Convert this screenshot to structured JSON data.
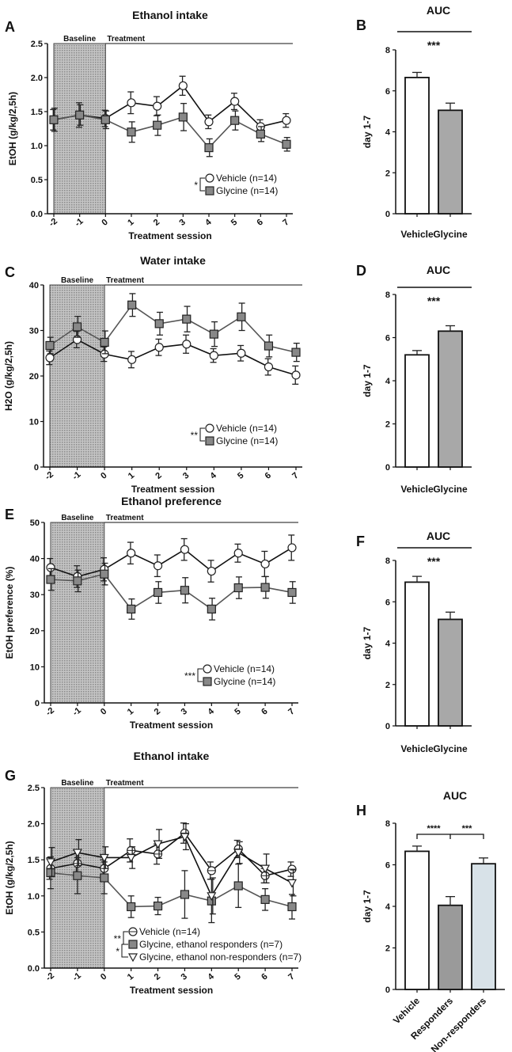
{
  "panels": [
    {
      "letter": "A",
      "type": "line",
      "title": "Ethanol intake",
      "ylabel": "EtOH (g/kg/2,5h)",
      "xlabel": "Treatment session",
      "ylim": [
        0,
        2.5
      ],
      "yticks": [
        "0.0",
        "0.5",
        "1.0",
        "1.5",
        "2.0",
        "2.5"
      ],
      "categories": [
        "-2",
        "-1",
        "0",
        "1",
        "2",
        "3",
        "4",
        "5",
        "6",
        "7"
      ],
      "baseline_label": "Baseline",
      "treatment_label": "Treatment",
      "significance": [
        "*"
      ],
      "series": [
        {
          "name": "Vehicle (n=14)",
          "marker": "circle",
          "color": "#ffffff",
          "values": [
            1.38,
            1.45,
            1.4,
            1.63,
            1.58,
            1.88,
            1.35,
            1.65,
            1.28,
            1.37
          ],
          "errors": [
            0.15,
            0.18,
            0.12,
            0.16,
            0.14,
            0.14,
            0.1,
            0.12,
            0.1,
            0.1
          ]
        },
        {
          "name": "Glycine (n=14)",
          "marker": "square",
          "color": "#888888",
          "values": [
            1.38,
            1.45,
            1.38,
            1.2,
            1.3,
            1.42,
            0.97,
            1.37,
            1.17,
            1.02
          ],
          "errors": [
            0.17,
            0.15,
            0.13,
            0.15,
            0.15,
            0.2,
            0.13,
            0.14,
            0.11,
            0.1
          ]
        }
      ]
    },
    {
      "letter": "B",
      "type": "bar",
      "title": "AUC",
      "ylabel": "day 1-7",
      "ylim": [
        0,
        8
      ],
      "yticks": [
        "0",
        "2",
        "4",
        "6",
        "8"
      ],
      "categories": [
        "Vehicle",
        "Glycine"
      ],
      "values": [
        6.65,
        5.05
      ],
      "errors": [
        0.25,
        0.35
      ],
      "colors": [
        "#ffffff",
        "#a8a8a8"
      ],
      "significance": "***"
    },
    {
      "letter": "C",
      "type": "line",
      "title": "Water intake",
      "ylabel": "H2O (g/kg/2,5h)",
      "xlabel": "Treatment session",
      "ylim": [
        0,
        40
      ],
      "yticks": [
        "0",
        "10",
        "20",
        "30",
        "40"
      ],
      "categories": [
        "-2",
        "-1",
        "0",
        "1",
        "2",
        "3",
        "4",
        "5",
        "6",
        "7"
      ],
      "baseline_label": "Baseline",
      "treatment_label": "Treatment",
      "significance": [
        "**"
      ],
      "series": [
        {
          "name": "Vehicle (n=14)",
          "marker": "circle",
          "color": "#ffffff",
          "values": [
            24.0,
            28.0,
            24.8,
            23.6,
            26.3,
            27.0,
            24.5,
            25.0,
            22.0,
            20.2
          ],
          "errors": [
            1.5,
            1.8,
            1.6,
            1.8,
            1.8,
            2.0,
            1.5,
            1.7,
            1.8,
            2.0
          ]
        },
        {
          "name": "Glycine (n=14)",
          "marker": "square",
          "color": "#888888",
          "values": [
            26.7,
            30.8,
            27.4,
            35.6,
            31.5,
            32.5,
            29.2,
            33.0,
            26.6,
            25.2
          ],
          "errors": [
            1.8,
            2.3,
            2.5,
            2.5,
            2.5,
            2.8,
            2.7,
            3.0,
            2.4,
            2.0
          ]
        }
      ]
    },
    {
      "letter": "D",
      "type": "bar",
      "title": "AUC",
      "ylabel": "day 1-7",
      "ylim": [
        0,
        8
      ],
      "yticks": [
        "0",
        "2",
        "4",
        "6",
        "8"
      ],
      "categories": [
        "Vehicle",
        "Glycine"
      ],
      "values": [
        5.2,
        6.3
      ],
      "errors": [
        0.2,
        0.25
      ],
      "colors": [
        "#ffffff",
        "#a8a8a8"
      ],
      "significance": "***"
    },
    {
      "letter": "E",
      "type": "line",
      "title": "Ethanol preference",
      "ylabel": "EtOH preference (%)",
      "xlabel": "Treatment session",
      "ylim": [
        0,
        50
      ],
      "yticks": [
        "0",
        "10",
        "20",
        "30",
        "40",
        "50"
      ],
      "categories": [
        "-2",
        "-1",
        "0",
        "1",
        "2",
        "3",
        "4",
        "5",
        "6",
        "7"
      ],
      "baseline_label": "Baseline",
      "treatment_label": "Treatment",
      "significance": [
        "***"
      ],
      "series": [
        {
          "name": "Vehicle (n=14)",
          "marker": "circle",
          "color": "#ffffff",
          "values": [
            37.5,
            35.0,
            37.0,
            41.5,
            38.0,
            42.5,
            36.5,
            41.5,
            38.5,
            43.0
          ],
          "errors": [
            2.5,
            3.0,
            3.2,
            3.0,
            3.0,
            3.0,
            3.0,
            2.5,
            3.5,
            3.5
          ]
        },
        {
          "name": "Glycine (n=14)",
          "marker": "square",
          "color": "#888888",
          "values": [
            34.2,
            33.8,
            35.7,
            26.0,
            30.6,
            31.2,
            26.0,
            31.9,
            32.0,
            30.6
          ],
          "errors": [
            3.0,
            3.0,
            3.0,
            2.8,
            3.0,
            3.5,
            3.0,
            3.0,
            3.0,
            3.0
          ]
        }
      ]
    },
    {
      "letter": "F",
      "type": "bar",
      "title": "AUC",
      "ylabel": "day 1-7",
      "ylim": [
        0,
        8
      ],
      "yticks": [
        "0",
        "2",
        "4",
        "6",
        "8"
      ],
      "categories": [
        "Vehicle",
        "Glycine"
      ],
      "values": [
        6.95,
        5.15
      ],
      "errors": [
        0.28,
        0.35
      ],
      "colors": [
        "#ffffff",
        "#a8a8a8"
      ],
      "significance": "***"
    },
    {
      "letter": "G",
      "type": "line",
      "title": "Ethanol intake",
      "ylabel": "EtOH (g/kg/2,5h)",
      "xlabel": "Treatment session",
      "ylim": [
        0,
        2.5
      ],
      "yticks": [
        "0.0",
        "0.5",
        "1.0",
        "1.5",
        "2.0",
        "2.5"
      ],
      "categories": [
        "-2",
        "-1",
        "0",
        "1",
        "2",
        "3",
        "4",
        "5",
        "6",
        "7"
      ],
      "baseline_label": "Baseline",
      "treatment_label": "Treatment",
      "significance": [
        "**",
        "*"
      ],
      "series": [
        {
          "name": "Vehicle (n=14)",
          "marker": "circle-line",
          "color": "#ffffff",
          "values": [
            1.38,
            1.45,
            1.38,
            1.63,
            1.58,
            1.87,
            1.35,
            1.65,
            1.28,
            1.37
          ],
          "errors": [
            0.15,
            0.18,
            0.12,
            0.16,
            0.14,
            0.14,
            0.12,
            0.12,
            0.1,
            0.1
          ]
        },
        {
          "name": "Glycine, ethanol responders (n=7)",
          "marker": "square",
          "color": "#888888",
          "values": [
            1.32,
            1.28,
            1.25,
            0.85,
            0.86,
            1.02,
            0.93,
            1.14,
            0.95,
            0.85
          ],
          "errors": [
            0.22,
            0.25,
            0.22,
            0.15,
            0.12,
            0.33,
            0.3,
            0.3,
            0.15,
            0.17
          ]
        },
        {
          "name": "Glycine, ethanol non-responders (n=7)",
          "marker": "triangle",
          "color": "#ffffff",
          "values": [
            1.47,
            1.6,
            1.53,
            1.53,
            1.72,
            1.82,
            1.0,
            1.6,
            1.38,
            1.18
          ],
          "errors": [
            0.2,
            0.18,
            0.15,
            0.15,
            0.2,
            0.18,
            0.25,
            0.15,
            0.2,
            0.18
          ]
        }
      ]
    },
    {
      "letter": "H",
      "type": "bar",
      "title": "AUC",
      "ylabel": "day 1-7",
      "ylim": [
        0,
        8
      ],
      "yticks": [
        "0",
        "2",
        "4",
        "6",
        "8"
      ],
      "categories": [
        "Vehicle",
        "Responders",
        "Non-responders"
      ],
      "values": [
        6.65,
        4.05,
        6.05
      ],
      "errors": [
        0.25,
        0.42,
        0.28
      ],
      "colors": [
        "#ffffff",
        "#9a9a9a",
        "#d8e2e8"
      ],
      "significance_pairs": [
        "****",
        "***"
      ]
    }
  ],
  "chart_data": [
    {
      "panel": "A",
      "type": "line",
      "title": "Ethanol intake",
      "xlabel": "Treatment session",
      "ylabel": "EtOH (g/kg/2,5h)",
      "ylim": [
        0,
        2.5
      ],
      "x": [
        -2,
        -1,
        0,
        1,
        2,
        3,
        4,
        5,
        6,
        7
      ],
      "series": [
        {
          "name": "Vehicle (n=14)",
          "values": [
            1.38,
            1.45,
            1.4,
            1.63,
            1.58,
            1.88,
            1.35,
            1.65,
            1.28,
            1.37
          ]
        },
        {
          "name": "Glycine (n=14)",
          "values": [
            1.38,
            1.45,
            1.38,
            1.2,
            1.3,
            1.42,
            0.97,
            1.37,
            1.17,
            1.02
          ]
        }
      ]
    },
    {
      "panel": "B",
      "type": "bar",
      "title": "AUC",
      "ylabel": "day 1-7",
      "ylim": [
        0,
        8
      ],
      "categories": [
        "Vehicle",
        "Glycine"
      ],
      "values": [
        6.65,
        5.05
      ]
    },
    {
      "panel": "C",
      "type": "line",
      "title": "Water intake",
      "xlabel": "Treatment session",
      "ylabel": "H2O (g/kg/2,5h)",
      "ylim": [
        0,
        40
      ],
      "x": [
        -2,
        -1,
        0,
        1,
        2,
        3,
        4,
        5,
        6,
        7
      ],
      "series": [
        {
          "name": "Vehicle (n=14)",
          "values": [
            24.0,
            28.0,
            24.8,
            23.6,
            26.3,
            27.0,
            24.5,
            25.0,
            22.0,
            20.2
          ]
        },
        {
          "name": "Glycine (n=14)",
          "values": [
            26.7,
            30.8,
            27.4,
            35.6,
            31.5,
            32.5,
            29.2,
            33.0,
            26.6,
            25.2
          ]
        }
      ]
    },
    {
      "panel": "D",
      "type": "bar",
      "title": "AUC",
      "ylabel": "day 1-7",
      "ylim": [
        0,
        8
      ],
      "categories": [
        "Vehicle",
        "Glycine"
      ],
      "values": [
        5.2,
        6.3
      ]
    },
    {
      "panel": "E",
      "type": "line",
      "title": "Ethanol preference",
      "xlabel": "Treatment session",
      "ylabel": "EtOH preference (%)",
      "ylim": [
        0,
        50
      ],
      "x": [
        -2,
        -1,
        0,
        1,
        2,
        3,
        4,
        5,
        6,
        7
      ],
      "series": [
        {
          "name": "Vehicle (n=14)",
          "values": [
            37.5,
            35.0,
            37.0,
            41.5,
            38.0,
            42.5,
            36.5,
            41.5,
            38.5,
            43.0
          ]
        },
        {
          "name": "Glycine (n=14)",
          "values": [
            34.2,
            33.8,
            35.7,
            26.0,
            30.6,
            31.2,
            26.0,
            31.9,
            32.0,
            30.6
          ]
        }
      ]
    },
    {
      "panel": "F",
      "type": "bar",
      "title": "AUC",
      "ylabel": "day 1-7",
      "ylim": [
        0,
        8
      ],
      "categories": [
        "Vehicle",
        "Glycine"
      ],
      "values": [
        6.95,
        5.15
      ]
    },
    {
      "panel": "G",
      "type": "line",
      "title": "Ethanol intake",
      "xlabel": "Treatment session",
      "ylabel": "EtOH (g/kg/2,5h)",
      "ylim": [
        0,
        2.5
      ],
      "x": [
        -2,
        -1,
        0,
        1,
        2,
        3,
        4,
        5,
        6,
        7
      ],
      "series": [
        {
          "name": "Vehicle (n=14)",
          "values": [
            1.38,
            1.45,
            1.38,
            1.63,
            1.58,
            1.87,
            1.35,
            1.65,
            1.28,
            1.37
          ]
        },
        {
          "name": "Glycine, ethanol responders (n=7)",
          "values": [
            1.32,
            1.28,
            1.25,
            0.85,
            0.86,
            1.02,
            0.93,
            1.14,
            0.95,
            0.85
          ]
        },
        {
          "name": "Glycine, ethanol non-responders (n=7)",
          "values": [
            1.47,
            1.6,
            1.53,
            1.53,
            1.72,
            1.82,
            1.0,
            1.6,
            1.38,
            1.18
          ]
        }
      ]
    },
    {
      "panel": "H",
      "type": "bar",
      "title": "AUC",
      "ylabel": "day 1-7",
      "ylim": [
        0,
        8
      ],
      "categories": [
        "Vehicle",
        "Responders",
        "Non-responders"
      ],
      "values": [
        6.65,
        4.05,
        6.05
      ]
    }
  ]
}
